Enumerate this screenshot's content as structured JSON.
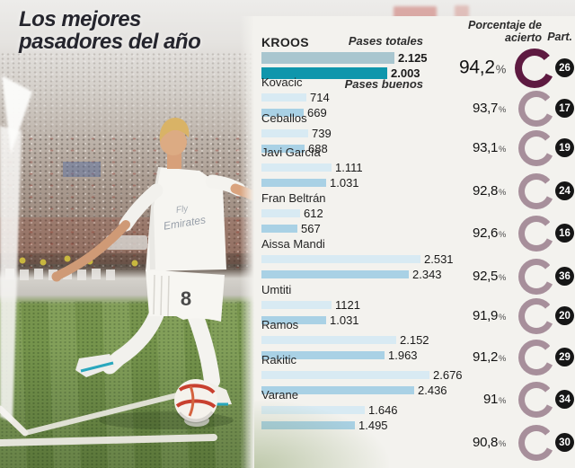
{
  "title": {
    "line1": "Los mejores",
    "line2": "pasadores del año"
  },
  "header": {
    "accuracy_header": "Porcentaje de acierto",
    "matches_header": "Part."
  },
  "photo": {
    "jersey_line1": "Fly",
    "jersey_line2": "Emirates",
    "shorts_number": "8"
  },
  "colors": {
    "highlight_bar_total": "#a9c6cf",
    "highlight_bar_good": "#0f96ac",
    "bar_total": "#d8eaf3",
    "bar_good": "#a9d1e5",
    "donut_highlight": "#5e1a41",
    "donut": "#a78f9b",
    "badge_bg": "#161616"
  },
  "chart_data": {
    "type": "bar",
    "title": "Los mejores pasadores del año",
    "series_labels": {
      "total": "Pases totales",
      "good": "Pases buenos"
    },
    "percent_sign": "%",
    "legend_position": "inline-top",
    "players": [
      {
        "name": "KROOS",
        "total": 2125,
        "total_label": "2.125",
        "good": 2003,
        "good_label": "2.003",
        "accuracy": "94,2",
        "accuracy_value": 94.2,
        "matches": "26",
        "highlighted": true
      },
      {
        "name": "Kovacic",
        "total": 714,
        "total_label": "714",
        "good": 669,
        "good_label": "669",
        "accuracy": "93,7",
        "accuracy_value": 93.7,
        "matches": "17",
        "highlighted": false
      },
      {
        "name": "Ceballos",
        "total": 739,
        "total_label": "739",
        "good": 688,
        "good_label": "688",
        "accuracy": "93,1",
        "accuracy_value": 93.1,
        "matches": "19",
        "highlighted": false
      },
      {
        "name": "Javi García",
        "total": 1111,
        "total_label": "1.111",
        "good": 1031,
        "good_label": "1.031",
        "accuracy": "92,8",
        "accuracy_value": 92.8,
        "matches": "24",
        "highlighted": false
      },
      {
        "name": "Fran Beltrán",
        "total": 612,
        "total_label": "612",
        "good": 567,
        "good_label": "567",
        "accuracy": "92,6",
        "accuracy_value": 92.6,
        "matches": "16",
        "highlighted": false
      },
      {
        "name": "Aissa Mandi",
        "total": 2531,
        "total_label": "2.531",
        "good": 2343,
        "good_label": "2.343",
        "accuracy": "92,5",
        "accuracy_value": 92.5,
        "matches": "36",
        "highlighted": false
      },
      {
        "name": "Umtiti",
        "total": 1121,
        "total_label": "1121",
        "good": 1031,
        "good_label": "1.031",
        "accuracy": "91,9",
        "accuracy_value": 91.9,
        "matches": "20",
        "highlighted": false
      },
      {
        "name": "Ramos",
        "total": 2152,
        "total_label": "2.152",
        "good": 1963,
        "good_label": "1.963",
        "accuracy": "91,2",
        "accuracy_value": 91.2,
        "matches": "29",
        "highlighted": false
      },
      {
        "name": "Rakitic",
        "total": 2676,
        "total_label": "2.676",
        "good": 2436,
        "good_label": "2.436",
        "accuracy": "91",
        "accuracy_value": 91.0,
        "matches": "34",
        "highlighted": false
      },
      {
        "name": "Varane",
        "total": 1646,
        "total_label": "1.646",
        "good": 1495,
        "good_label": "1.495",
        "accuracy": "90,8",
        "accuracy_value": 90.8,
        "matches": "30",
        "highlighted": false
      }
    ]
  }
}
